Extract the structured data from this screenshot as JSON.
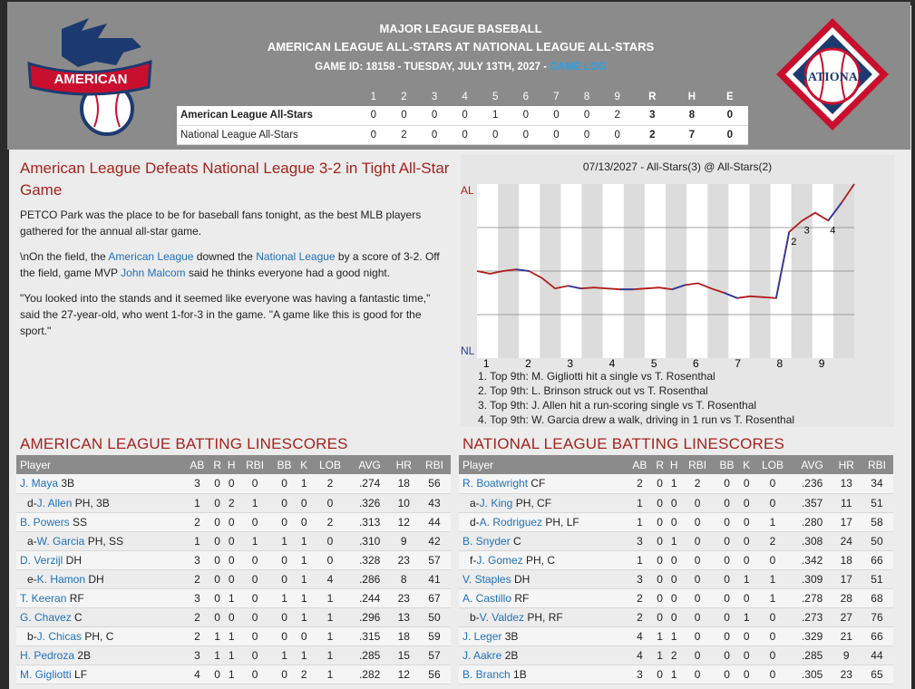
{
  "header": {
    "league": "MAJOR LEAGUE BASEBALL",
    "matchup": "AMERICAN LEAGUE ALL-STARS AT NATIONAL LEAGUE ALL-STARS",
    "game_info": "GAME ID: 18158 - TUESDAY, JULY 13TH, 2027 - ",
    "game_log_link": "GAME LOG",
    "al_logo_text": "AMERICAN",
    "nl_logo_text": "NATIONAL",
    "colors": {
      "header_bg": "#8b8b8b",
      "accent_red": "#a3241f",
      "link_blue": "#2272b8"
    }
  },
  "linescore": {
    "columns": [
      "1",
      "2",
      "3",
      "4",
      "5",
      "6",
      "7",
      "8",
      "9",
      "R",
      "H",
      "E"
    ],
    "rows": [
      {
        "team": "American League All-Stars",
        "innings": [
          "0",
          "0",
          "0",
          "0",
          "1",
          "0",
          "0",
          "0",
          "2"
        ],
        "r": "3",
        "h": "8",
        "e": "0"
      },
      {
        "team": "National League All-Stars",
        "innings": [
          "0",
          "2",
          "0",
          "0",
          "0",
          "0",
          "0",
          "0",
          "0"
        ],
        "r": "2",
        "h": "7",
        "e": "0"
      }
    ]
  },
  "story": {
    "headline": "American League Defeats National League 3-2 in Tight All-Star Game",
    "p1": "PETCO Park was the place to be for baseball fans tonight, as the best MLB players gathered for the annual all-star game.",
    "p2_a": "\\nOn the field, the ",
    "p2_link1": "American League",
    "p2_b": " downed the ",
    "p2_link2": "National League",
    "p2_c": " by a score of 3-2. Off the field, game MVP ",
    "p2_link3": "John Malcom",
    "p2_d": " said he thinks everyone had a good night.",
    "p3": "\"You looked into the stands and it seemed like everyone was having a fantastic time,\" said the 27-year-old, who went 1-for-3 in the game. \"A game like this is good for the sport.\""
  },
  "chart_data": {
    "type": "line",
    "title": "07/13/2027 - All-Stars(3) @ All-Stars(2)",
    "y_top_label": "AL",
    "y_bottom_label": "NL",
    "x_ticks": [
      "1",
      "2",
      "3",
      "4",
      "5",
      "6",
      "7",
      "8",
      "9"
    ],
    "series": [
      {
        "values": [
          0.0,
          -0.03,
          0.0,
          0.02,
          0.0,
          -0.08,
          -0.2,
          -0.17,
          -0.2,
          -0.19,
          -0.2,
          -0.21,
          -0.21,
          -0.2,
          -0.19,
          -0.21,
          -0.16,
          -0.14,
          -0.2,
          -0.25,
          -0.31,
          -0.29,
          -0.3,
          -0.31,
          0.45,
          0.58,
          0.67,
          0.58,
          0.78,
          1.0
        ]
      }
    ],
    "annotations": [
      "2",
      "3",
      "4"
    ],
    "notes": [
      "1. Top 9th: M. Gigliotti hit a single vs T. Rosenthal",
      "2. Top 9th: L. Brinson struck out vs T. Rosenthal",
      "3. Top 9th: J. Allen hit a run-scoring single vs T. Rosenthal",
      "4. Top 9th: W. Garcia drew a walk, driving in 1 run vs T. Rosenthal"
    ]
  },
  "al_batting": {
    "title": "AMERICAN LEAGUE BATTING LINESCORES",
    "columns": [
      "Player",
      "AB",
      "R",
      "H",
      "RBI",
      "BB",
      "K",
      "LOB",
      "AVG",
      "HR",
      "RBI"
    ],
    "rows": [
      {
        "prefix": "",
        "name": "J. Maya",
        "pos": " 3B",
        "stats": [
          "3",
          "0",
          "0",
          "0",
          "0",
          "1",
          "2",
          ".274",
          "18",
          "56"
        ]
      },
      {
        "prefix": "d-",
        "name": "J. Allen",
        "pos": " PH, 3B",
        "stats": [
          "1",
          "0",
          "2",
          "1",
          "0",
          "0",
          "0",
          ".326",
          "10",
          "43"
        ]
      },
      {
        "prefix": "",
        "name": "B. Powers",
        "pos": " SS",
        "stats": [
          "2",
          "0",
          "0",
          "0",
          "0",
          "0",
          "2",
          ".313",
          "12",
          "44"
        ]
      },
      {
        "prefix": "a-",
        "name": "W. Garcia",
        "pos": " PH, SS",
        "stats": [
          "1",
          "0",
          "0",
          "1",
          "1",
          "1",
          "0",
          ".310",
          "9",
          "42"
        ]
      },
      {
        "prefix": "",
        "name": "D. Verzijl",
        "pos": " DH",
        "stats": [
          "3",
          "0",
          "0",
          "0",
          "0",
          "1",
          "0",
          ".328",
          "23",
          "57"
        ]
      },
      {
        "prefix": "e-",
        "name": "K. Hamon",
        "pos": " DH",
        "stats": [
          "2",
          "0",
          "0",
          "0",
          "0",
          "1",
          "4",
          ".286",
          "8",
          "41"
        ]
      },
      {
        "prefix": "",
        "name": "T. Keeran",
        "pos": " RF",
        "stats": [
          "3",
          "0",
          "1",
          "0",
          "1",
          "1",
          "1",
          ".244",
          "23",
          "67"
        ]
      },
      {
        "prefix": "",
        "name": "G. Chavez",
        "pos": " C",
        "stats": [
          "2",
          "0",
          "0",
          "0",
          "0",
          "1",
          "1",
          ".296",
          "13",
          "50"
        ]
      },
      {
        "prefix": "b-",
        "name": "J. Chicas",
        "pos": " PH, C",
        "stats": [
          "2",
          "1",
          "1",
          "0",
          "0",
          "0",
          "1",
          ".315",
          "18",
          "59"
        ]
      },
      {
        "prefix": "",
        "name": "H. Pedroza",
        "pos": " 2B",
        "stats": [
          "3",
          "1",
          "1",
          "0",
          "1",
          "1",
          "1",
          ".285",
          "15",
          "57"
        ]
      },
      {
        "prefix": "",
        "name": "M. Gigliotti",
        "pos": " LF",
        "stats": [
          "4",
          "0",
          "1",
          "0",
          "0",
          "2",
          "1",
          ".282",
          "12",
          "56"
        ]
      }
    ]
  },
  "nl_batting": {
    "title": "NATIONAL LEAGUE BATTING LINESCORES",
    "columns": [
      "Player",
      "AB",
      "R",
      "H",
      "RBI",
      "BB",
      "K",
      "LOB",
      "AVG",
      "HR",
      "RBI"
    ],
    "rows": [
      {
        "prefix": "",
        "name": "R. Boatwright",
        "pos": " CF",
        "stats": [
          "2",
          "0",
          "1",
          "2",
          "0",
          "0",
          "0",
          ".236",
          "13",
          "34"
        ]
      },
      {
        "prefix": "a-",
        "name": "J. King",
        "pos": " PH, CF",
        "stats": [
          "1",
          "0",
          "0",
          "0",
          "0",
          "0",
          "0",
          ".357",
          "11",
          "51"
        ]
      },
      {
        "prefix": "d-",
        "name": "A. Rodriguez",
        "pos": " PH, LF",
        "stats": [
          "1",
          "0",
          "0",
          "0",
          "0",
          "0",
          "1",
          ".280",
          "17",
          "58"
        ]
      },
      {
        "prefix": "",
        "name": "B. Snyder",
        "pos": " C",
        "stats": [
          "3",
          "0",
          "1",
          "0",
          "0",
          "0",
          "2",
          ".308",
          "24",
          "50"
        ]
      },
      {
        "prefix": "f-",
        "name": "J. Gomez",
        "pos": " PH, C",
        "stats": [
          "1",
          "0",
          "0",
          "0",
          "0",
          "0",
          "0",
          ".342",
          "18",
          "66"
        ]
      },
      {
        "prefix": "",
        "name": "V. Staples",
        "pos": " DH",
        "stats": [
          "3",
          "0",
          "0",
          "0",
          "0",
          "1",
          "1",
          ".309",
          "17",
          "51"
        ]
      },
      {
        "prefix": "",
        "name": "A. Castillo",
        "pos": " RF",
        "stats": [
          "2",
          "0",
          "0",
          "0",
          "0",
          "0",
          "1",
          ".278",
          "28",
          "68"
        ]
      },
      {
        "prefix": "b-",
        "name": "V. Valdez",
        "pos": " PH, RF",
        "stats": [
          "2",
          "0",
          "0",
          "0",
          "0",
          "1",
          "0",
          ".273",
          "27",
          "76"
        ]
      },
      {
        "prefix": "",
        "name": "J. Leger",
        "pos": " 3B",
        "stats": [
          "4",
          "1",
          "1",
          "0",
          "0",
          "0",
          "0",
          ".329",
          "21",
          "66"
        ]
      },
      {
        "prefix": "",
        "name": "J. Aakre",
        "pos": " 2B",
        "stats": [
          "4",
          "1",
          "2",
          "0",
          "0",
          "0",
          "0",
          ".285",
          "9",
          "44"
        ]
      },
      {
        "prefix": "",
        "name": "B. Branch",
        "pos": " 1B",
        "stats": [
          "3",
          "0",
          "1",
          "0",
          "0",
          "0",
          "0",
          ".305",
          "23",
          "65"
        ]
      }
    ]
  }
}
